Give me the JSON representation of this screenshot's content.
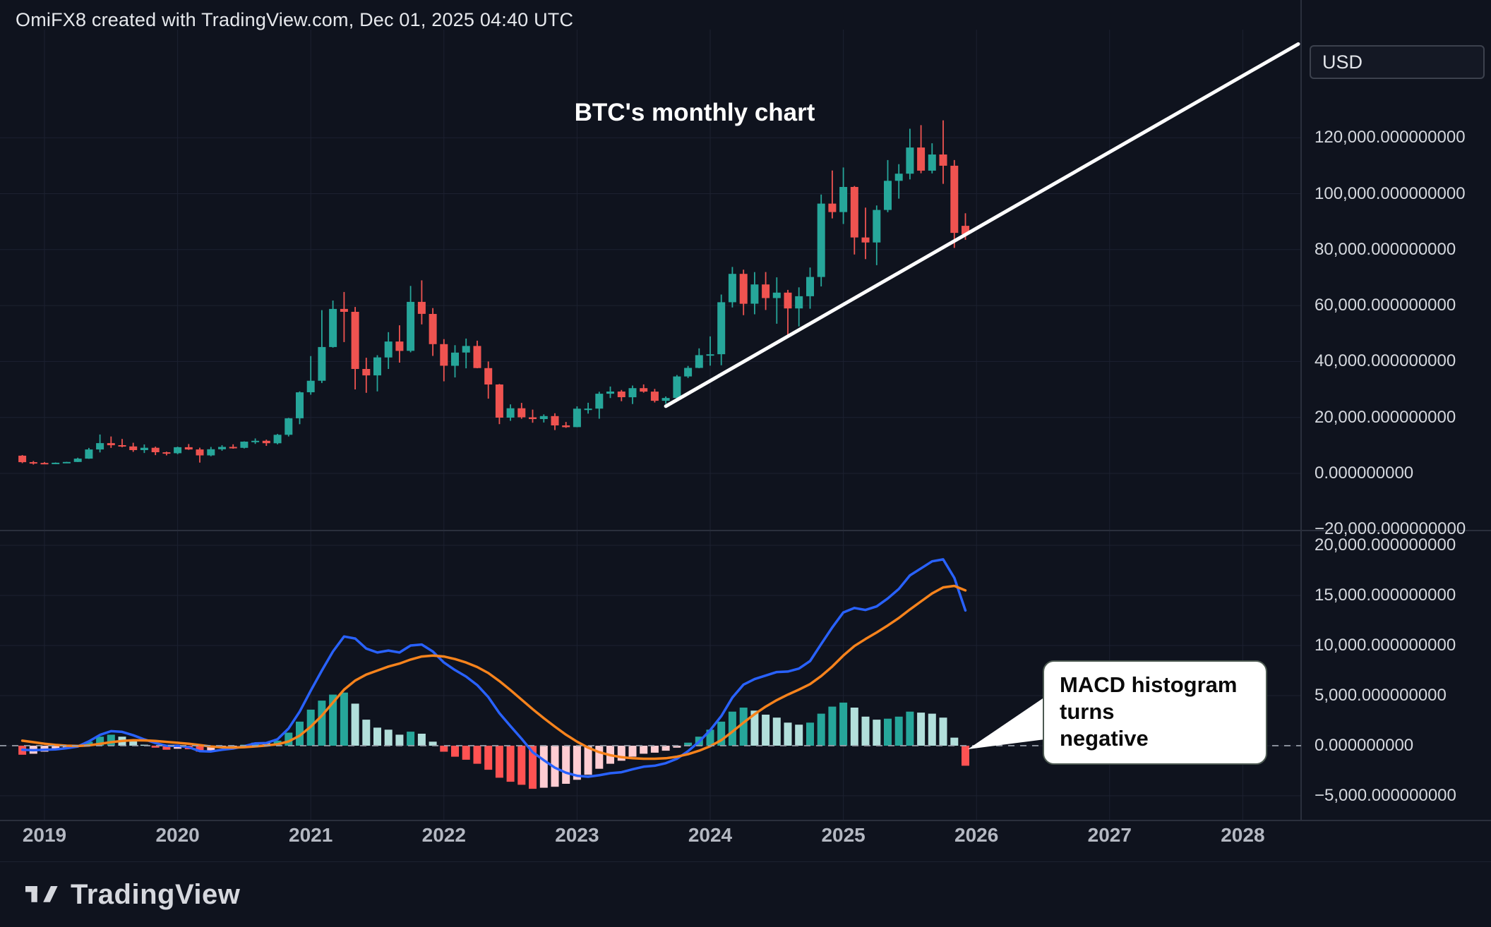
{
  "header": {
    "watermark": "OmiFX8 created with TradingView.com, Dec 01, 2025 04:40 UTC"
  },
  "chart_title": "BTC's monthly chart",
  "price_axis": {
    "currency_label": "USD",
    "main_labels": [
      {
        "value": 120000,
        "text": "120,000.000000000"
      },
      {
        "value": 100000,
        "text": "100,000.000000000"
      },
      {
        "value": 80000,
        "text": "80,000.000000000"
      },
      {
        "value": 60000,
        "text": "60,000.000000000"
      },
      {
        "value": 40000,
        "text": "40,000.000000000"
      },
      {
        "value": 20000,
        "text": "20,000.000000000"
      },
      {
        "value": 0,
        "text": "0.000000000"
      },
      {
        "value": -20000,
        "text": "−20,000.000000000"
      }
    ],
    "macd_labels": [
      {
        "value": 20000,
        "text": "20,000.000000000"
      },
      {
        "value": 15000,
        "text": "15,000.000000000"
      },
      {
        "value": 10000,
        "text": "10,000.000000000"
      },
      {
        "value": 5000,
        "text": "5,000.000000000"
      },
      {
        "value": 0,
        "text": "0.000000000"
      },
      {
        "value": -5000,
        "text": "−5,000.000000000"
      }
    ]
  },
  "time_axis": {
    "years": [
      {
        "year": 2019,
        "text": "2019"
      },
      {
        "year": 2020,
        "text": "2020"
      },
      {
        "year": 2021,
        "text": "2021"
      },
      {
        "year": 2022,
        "text": "2022"
      },
      {
        "year": 2023,
        "text": "2023"
      },
      {
        "year": 2024,
        "text": "2024"
      },
      {
        "year": 2025,
        "text": "2025"
      },
      {
        "year": 2026,
        "text": "2026"
      },
      {
        "year": 2027,
        "text": "2027"
      },
      {
        "year": 2028,
        "text": "2028"
      }
    ]
  },
  "callout": {
    "text": "MACD histogram\nturns\nnegative"
  },
  "footer": {
    "brand": "TradingView"
  },
  "colors": {
    "background": "#0f131e",
    "grid": "#1c2130",
    "separator": "#2a2f3c",
    "axis_text": "#d5d8de",
    "candle_up": "#26a69a",
    "candle_down": "#ef5350",
    "hist_up_strong": "#26a69a",
    "hist_up_weak": "#b2dfdb",
    "hist_down_strong": "#ff5252",
    "hist_down_weak": "#ffcdd2",
    "macd_line": "#2962ff",
    "signal_line": "#f7831c",
    "trendline": "#ffffff",
    "zero_line": "#9aa0ab",
    "callout_bg": "#ffffff",
    "callout_text": "#0a0a0a"
  },
  "chart_data": {
    "type": "candlestick",
    "title": "BTC's monthly chart",
    "timeframe": "monthly",
    "grid": true,
    "main_pane": {
      "ylim": [
        -22000,
        155000
      ],
      "ticks": [
        -20000,
        0,
        20000,
        40000,
        60000,
        80000,
        100000,
        120000
      ],
      "currency": "USD"
    },
    "macd_pane": {
      "ylim": [
        -7400,
        21300
      ],
      "ticks": [
        -5000,
        0,
        5000,
        10000,
        15000,
        20000
      ]
    },
    "x_years_visible": [
      2019,
      2020,
      2021,
      2022,
      2023,
      2024,
      2025,
      2026,
      2027,
      2028
    ],
    "candles_columns": [
      "month",
      "open",
      "high",
      "low",
      "close"
    ],
    "candles": [
      [
        "2018-11",
        6340,
        6560,
        3650,
        4020
      ],
      [
        "2018-12",
        4020,
        4410,
        3150,
        3740
      ],
      [
        "2019-01",
        3740,
        4050,
        3350,
        3430
      ],
      [
        "2019-02",
        3430,
        3900,
        3330,
        3810
      ],
      [
        "2019-03",
        3810,
        4140,
        3660,
        4090
      ],
      [
        "2019-04",
        4090,
        5600,
        4030,
        5270
      ],
      [
        "2019-05",
        5270,
        9100,
        5200,
        8560
      ],
      [
        "2019-06",
        8560,
        13900,
        7480,
        10830
      ],
      [
        "2019-07",
        10830,
        13200,
        9100,
        10080
      ],
      [
        "2019-08",
        10080,
        12320,
        9320,
        9630
      ],
      [
        "2019-09",
        9630,
        10950,
        7700,
        8310
      ],
      [
        "2019-10",
        8310,
        10350,
        7300,
        9150
      ],
      [
        "2019-11",
        9150,
        9550,
        6530,
        7550
      ],
      [
        "2019-12",
        7550,
        7770,
        6430,
        7200
      ],
      [
        "2020-01",
        7200,
        9570,
        6850,
        9350
      ],
      [
        "2020-02",
        9350,
        10500,
        8400,
        8550
      ],
      [
        "2020-03",
        8550,
        9170,
        3850,
        6440
      ],
      [
        "2020-04",
        6440,
        9460,
        6140,
        8630
      ],
      [
        "2020-05",
        8630,
        10070,
        8100,
        9450
      ],
      [
        "2020-06",
        9450,
        10380,
        8830,
        9140
      ],
      [
        "2020-07",
        9140,
        11450,
        8900,
        11350
      ],
      [
        "2020-08",
        11350,
        12480,
        10550,
        11650
      ],
      [
        "2020-09",
        11650,
        12050,
        9830,
        10780
      ],
      [
        "2020-10",
        10780,
        14100,
        10380,
        13800
      ],
      [
        "2020-11",
        13800,
        19860,
        13200,
        19700
      ],
      [
        "2020-12",
        19700,
        29300,
        17570,
        28990
      ],
      [
        "2021-01",
        28990,
        41950,
        28130,
        33110
      ],
      [
        "2021-02",
        33110,
        58350,
        32300,
        45160
      ],
      [
        "2021-03",
        45160,
        61800,
        44950,
        58780
      ],
      [
        "2021-04",
        58780,
        64850,
        46930,
        57750
      ],
      [
        "2021-05",
        57750,
        59500,
        30000,
        37330
      ],
      [
        "2021-06",
        37330,
        41330,
        28800,
        35040
      ],
      [
        "2021-07",
        35040,
        42240,
        29300,
        41460
      ],
      [
        "2021-08",
        41460,
        50500,
        37330,
        47150
      ],
      [
        "2021-09",
        47150,
        52950,
        39600,
        43790
      ],
      [
        "2021-10",
        43790,
        67000,
        43280,
        61300
      ],
      [
        "2021-11",
        61300,
        69000,
        53260,
        57000
      ],
      [
        "2021-12",
        57000,
        59100,
        42000,
        46210
      ],
      [
        "2022-01",
        46210,
        47990,
        32920,
        38480
      ],
      [
        "2022-02",
        38480,
        45820,
        34300,
        43190
      ],
      [
        "2022-03",
        43190,
        48200,
        37550,
        45540
      ],
      [
        "2022-04",
        45540,
        47450,
        37580,
        37640
      ],
      [
        "2022-05",
        37640,
        40000,
        26700,
        31790
      ],
      [
        "2022-06",
        31790,
        31960,
        17600,
        19940
      ],
      [
        "2022-07",
        19940,
        24670,
        18780,
        23290
      ],
      [
        "2022-08",
        23290,
        25200,
        19520,
        20050
      ],
      [
        "2022-09",
        20050,
        22800,
        18120,
        19430
      ],
      [
        "2022-10",
        19430,
        21080,
        18190,
        20490
      ],
      [
        "2022-11",
        20490,
        21480,
        15480,
        17160
      ],
      [
        "2022-12",
        17160,
        18390,
        16260,
        16540
      ],
      [
        "2023-01",
        16540,
        23960,
        16490,
        23130
      ],
      [
        "2023-02",
        23130,
        25250,
        21350,
        23140
      ],
      [
        "2023-03",
        23140,
        29180,
        19550,
        28470
      ],
      [
        "2023-04",
        28470,
        31050,
        26940,
        29250
      ],
      [
        "2023-05",
        29250,
        29820,
        25800,
        27220
      ],
      [
        "2023-06",
        27220,
        31400,
        24800,
        30470
      ],
      [
        "2023-07",
        30470,
        31800,
        28860,
        29230
      ],
      [
        "2023-08",
        29230,
        30180,
        25350,
        25940
      ],
      [
        "2023-09",
        25940,
        27480,
        24900,
        26960
      ],
      [
        "2023-10",
        26960,
        35150,
        26540,
        34650
      ],
      [
        "2023-11",
        34650,
        38400,
        34100,
        37710
      ],
      [
        "2023-12",
        37710,
        44700,
        37610,
        42270
      ],
      [
        "2024-01",
        42270,
        48970,
        38500,
        42580
      ],
      [
        "2024-02",
        42580,
        63930,
        38640,
        61180
      ],
      [
        "2024-03",
        61180,
        73790,
        59320,
        71330
      ],
      [
        "2024-04",
        71330,
        72800,
        56550,
        60640
      ],
      [
        "2024-05",
        60640,
        71950,
        56880,
        67530
      ],
      [
        "2024-06",
        67530,
        71990,
        58400,
        62670
      ],
      [
        "2024-07",
        62670,
        70080,
        53500,
        64620
      ],
      [
        "2024-08",
        64620,
        65600,
        49000,
        58970
      ],
      [
        "2024-09",
        58970,
        66500,
        52530,
        63330
      ],
      [
        "2024-10",
        63330,
        73600,
        58870,
        70220
      ],
      [
        "2024-11",
        70220,
        99660,
        66840,
        96450
      ],
      [
        "2024-12",
        96450,
        108260,
        91150,
        93430
      ],
      [
        "2025-01",
        93430,
        109350,
        89160,
        102400
      ],
      [
        "2025-02",
        102400,
        102750,
        78260,
        84350
      ],
      [
        "2025-03",
        84350,
        95000,
        76600,
        82550
      ],
      [
        "2025-04",
        82550,
        95770,
        74430,
        94180
      ],
      [
        "2025-05",
        94180,
        112000,
        93360,
        104600
      ],
      [
        "2025-06",
        104600,
        110530,
        98200,
        107140
      ],
      [
        "2025-07",
        107140,
        123200,
        105100,
        116490
      ],
      [
        "2025-08",
        116490,
        124500,
        107300,
        108230
      ],
      [
        "2025-09",
        108230,
        118000,
        107250,
        114000
      ],
      [
        "2025-10",
        114000,
        126200,
        103500,
        110000
      ],
      [
        "2025-11",
        110000,
        112000,
        80600,
        86000
      ],
      [
        "2025-12",
        88500,
        93000,
        83500,
        85500
      ]
    ],
    "indicator": {
      "type": "MACD",
      "aligned_to": "candles",
      "macd": [
        -400,
        -450,
        -400,
        -370,
        -250,
        -80,
        430,
        1080,
        1450,
        1380,
        1040,
        630,
        270,
        -20,
        -10,
        -150,
        -540,
        -580,
        -410,
        -280,
        -50,
        230,
        270,
        640,
        1720,
        3400,
        5500,
        7500,
        9400,
        10900,
        10700,
        9700,
        9300,
        9500,
        9300,
        10000,
        10100,
        9400,
        8300,
        7550,
        6900,
        6050,
        4850,
        3250,
        1950,
        700,
        -650,
        -1450,
        -2200,
        -2700,
        -3000,
        -3100,
        -2950,
        -2750,
        -2650,
        -2350,
        -2100,
        -2000,
        -1750,
        -1300,
        -550,
        400,
        1550,
        2950,
        4800,
        6100,
        6650,
        7000,
        7350,
        7400,
        7700,
        8450,
        10150,
        11800,
        13300,
        13750,
        13550,
        13900,
        14700,
        15650,
        17000,
        17700,
        18400,
        18600,
        16750,
        13500
      ],
      "signal": [
        500,
        350,
        200,
        80,
        0,
        -30,
        30,
        180,
        350,
        480,
        540,
        530,
        470,
        380,
        290,
        200,
        60,
        -80,
        -160,
        -180,
        -150,
        -70,
        20,
        140,
        420,
        1000,
        1900,
        3000,
        4300,
        5600,
        6500,
        7100,
        7500,
        7900,
        8200,
        8600,
        8900,
        9000,
        8900,
        8650,
        8300,
        7850,
        7250,
        6450,
        5550,
        4600,
        3650,
        2750,
        1900,
        1100,
        400,
        -200,
        -650,
        -950,
        -1150,
        -1250,
        -1300,
        -1300,
        -1250,
        -1100,
        -850,
        -500,
        -50,
        550,
        1400,
        2300,
        3150,
        3900,
        4550,
        5100,
        5600,
        6150,
        6950,
        7900,
        9000,
        9950,
        10650,
        11300,
        12000,
        12750,
        13600,
        14400,
        15200,
        15800,
        15950,
        15500
      ],
      "histogram": [
        -900,
        -800,
        -600,
        -450,
        -250,
        -50,
        400,
        900,
        1100,
        900,
        500,
        100,
        -200,
        -400,
        -300,
        -350,
        -600,
        -500,
        -250,
        -100,
        100,
        300,
        250,
        500,
        1300,
        2400,
        3600,
        4500,
        5100,
        5300,
        4200,
        2600,
        1800,
        1600,
        1100,
        1400,
        1200,
        400,
        -600,
        -1100,
        -1400,
        -1800,
        -2400,
        -3200,
        -3600,
        -3900,
        -4300,
        -4200,
        -4100,
        -3800,
        -3400,
        -2900,
        -2300,
        -1800,
        -1500,
        -1100,
        -800,
        -700,
        -500,
        -200,
        300,
        900,
        1600,
        2400,
        3400,
        3800,
        3500,
        3100,
        2800,
        2300,
        2100,
        2300,
        3200,
        3900,
        4300,
        3800,
        2900,
        2600,
        2700,
        2900,
        3400,
        3300,
        3200,
        2800,
        800,
        -2000
      ]
    },
    "trendline": {
      "from": {
        "month": "2023-09",
        "price": 24000
      },
      "to": {
        "month": "2028-06",
        "price": 153500
      }
    }
  }
}
